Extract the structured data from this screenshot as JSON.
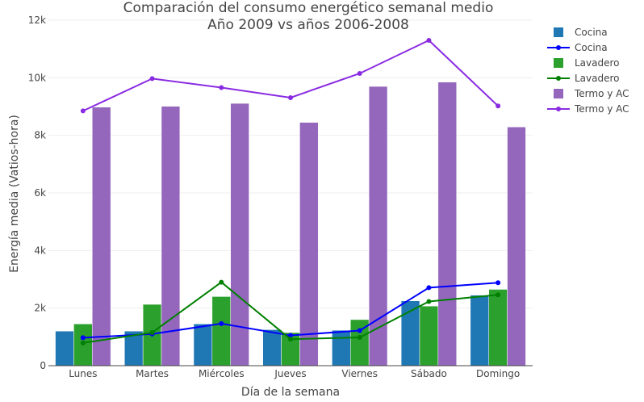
{
  "chart_data": {
    "type": "bar",
    "title": "Comparación del consumo energético semanal medio",
    "subtitle": "Año 2009 vs años 2006-2008",
    "xlabel": "Día de la semana",
    "ylabel": "Energía media (Vatios-hora)",
    "ylim": [
      0,
      12000
    ],
    "yticks": [
      0,
      2000,
      4000,
      6000,
      8000,
      10000,
      12000
    ],
    "ytick_labels": [
      "0",
      "2k",
      "4k",
      "6k",
      "8k",
      "10k",
      "12k"
    ],
    "grid": true,
    "legend_position": "top-right",
    "categories": [
      "Lunes",
      "Martes",
      "Miércoles",
      "Jueves",
      "Viernes",
      "Sábado",
      "Domingo"
    ],
    "bar_series": [
      {
        "name": "Cocina",
        "color": "#1f77b4",
        "values": [
          1200,
          1200,
          1450,
          1250,
          1230,
          2250,
          2450
        ]
      },
      {
        "name": "Lavadero",
        "color": "#2ca02c",
        "values": [
          1450,
          2130,
          2400,
          1150,
          1600,
          2070,
          2650
        ]
      },
      {
        "name": "Termo y AC",
        "color": "#9467bd",
        "values": [
          8980,
          9010,
          9110,
          8450,
          9700,
          9850,
          8290
        ]
      }
    ],
    "line_series": [
      {
        "name": "Cocina",
        "color": "#0000ff",
        "values": [
          970,
          1100,
          1460,
          1050,
          1220,
          2710,
          2880
        ]
      },
      {
        "name": "Lavadero",
        "color": "#008000",
        "values": [
          790,
          1150,
          2900,
          920,
          980,
          2230,
          2460
        ]
      },
      {
        "name": "Termo y AC",
        "color": "#8a2be2",
        "values": [
          8850,
          9970,
          9660,
          9310,
          10150,
          11300,
          9020
        ]
      }
    ]
  }
}
